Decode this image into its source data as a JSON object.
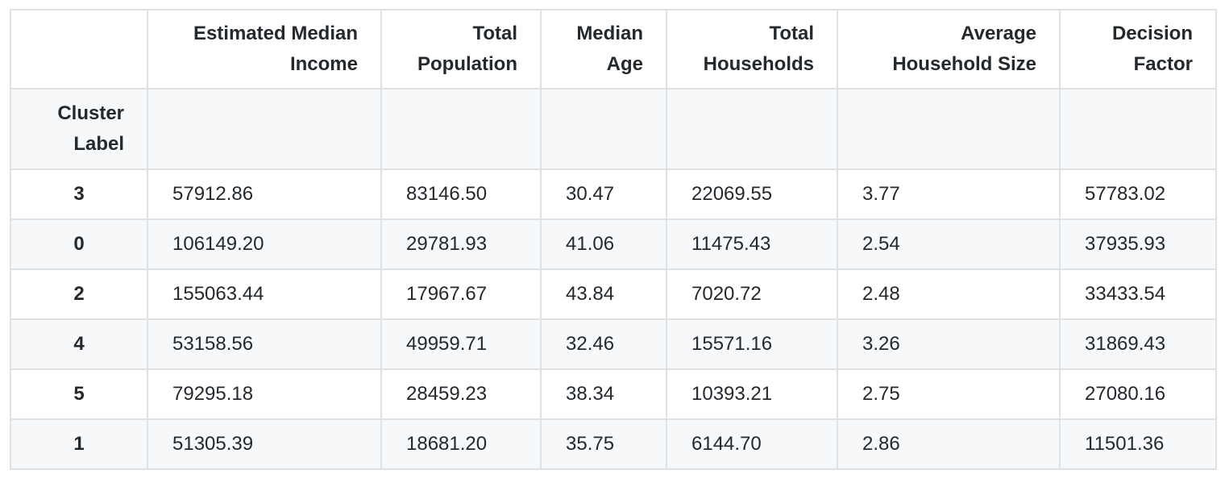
{
  "table": {
    "index_name": "Cluster Label",
    "columns": [
      "Estimated Median Income",
      "Total Population",
      "Median Age",
      "Total Households",
      "Average Household Size",
      "Decision Factor"
    ],
    "column_lines": [
      [
        "Estimated Median",
        "Income"
      ],
      [
        "Total",
        "Population"
      ],
      [
        "Median",
        "Age"
      ],
      [
        "Total",
        "Households"
      ],
      [
        "Average",
        "Household Size"
      ],
      [
        "Decision",
        "Factor"
      ]
    ],
    "index_lines": [
      "Cluster",
      "Label"
    ],
    "rows": [
      {
        "label": "3",
        "values": [
          "57912.86",
          "83146.50",
          "30.47",
          "22069.55",
          "3.77",
          "57783.02"
        ]
      },
      {
        "label": "0",
        "values": [
          "106149.20",
          "29781.93",
          "41.06",
          "11475.43",
          "2.54",
          "37935.93"
        ]
      },
      {
        "label": "2",
        "values": [
          "155063.44",
          "17967.67",
          "43.84",
          "7020.72",
          "2.48",
          "33433.54"
        ]
      },
      {
        "label": "4",
        "values": [
          "53158.56",
          "49959.71",
          "32.46",
          "15571.16",
          "3.26",
          "31869.43"
        ]
      },
      {
        "label": "5",
        "values": [
          "79295.18",
          "28459.23",
          "38.34",
          "10393.21",
          "2.75",
          "27080.16"
        ]
      },
      {
        "label": "1",
        "values": [
          "51305.39",
          "18681.20",
          "35.75",
          "6144.70",
          "2.86",
          "11501.36"
        ]
      }
    ]
  }
}
